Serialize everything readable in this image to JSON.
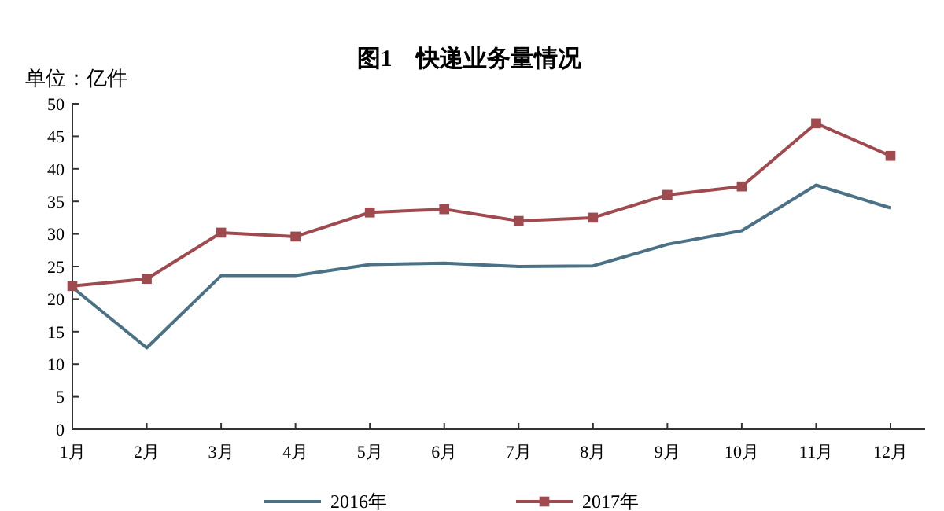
{
  "chart_data": {
    "type": "line",
    "title": "图1　快递业务量情况",
    "ylabel": "单位：亿件",
    "categories": [
      "1月",
      "2月",
      "3月",
      "4月",
      "5月",
      "6月",
      "7月",
      "8月",
      "9月",
      "10月",
      "11月",
      "12月"
    ],
    "series": [
      {
        "name": "2016年",
        "color": "#4a7185",
        "marker": "none",
        "values": [
          21.8,
          12.5,
          23.6,
          23.6,
          25.3,
          25.5,
          25.0,
          25.1,
          28.4,
          30.5,
          37.5,
          34.0
        ]
      },
      {
        "name": "2017年",
        "color": "#9e4a4f",
        "marker": "square",
        "values": [
          22.0,
          23.1,
          30.2,
          29.6,
          33.3,
          33.8,
          32.0,
          32.5,
          36.0,
          37.3,
          47.0,
          42.0
        ]
      }
    ],
    "ylim": [
      0,
      50
    ],
    "yticks": [
      0,
      5,
      10,
      15,
      20,
      25,
      30,
      35,
      40,
      45,
      50
    ],
    "grid": false,
    "legend": "bottom"
  }
}
